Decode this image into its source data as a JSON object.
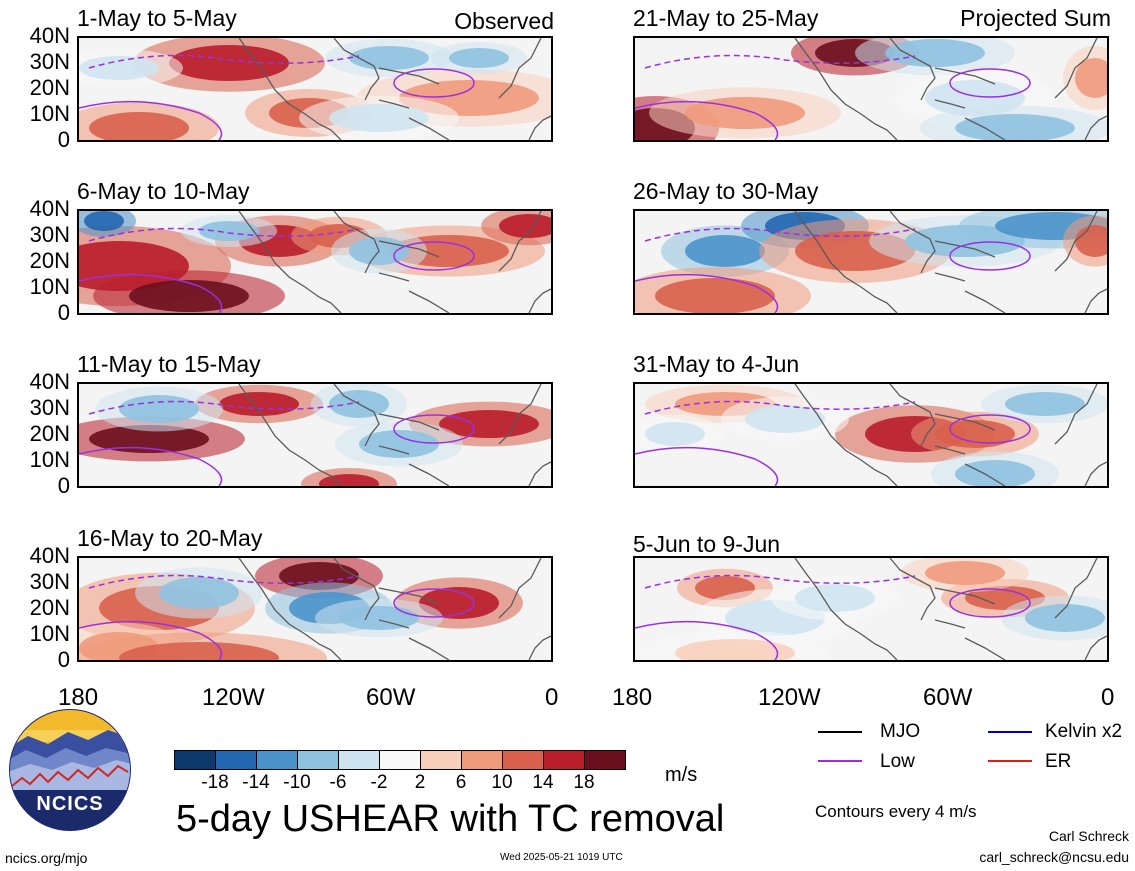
{
  "panels": [
    {
      "id": "p1",
      "title": "1-May to 5-May",
      "tag": "Observed"
    },
    {
      "id": "p2",
      "title": "6-May to 10-May",
      "tag": ""
    },
    {
      "id": "p3",
      "title": "11-May to 15-May",
      "tag": ""
    },
    {
      "id": "p4",
      "title": "16-May to 20-May",
      "tag": ""
    },
    {
      "id": "p5",
      "title": "21-May to 25-May",
      "tag": "Projected Sum"
    },
    {
      "id": "p6",
      "title": "26-May to 30-May",
      "tag": ""
    },
    {
      "id": "p7",
      "title": "31-May to 4-Jun",
      "tag": ""
    },
    {
      "id": "p8",
      "title": "5-Jun to 9-Jun",
      "tag": ""
    }
  ],
  "y_ticks": [
    "40N",
    "30N",
    "20N",
    "10N",
    "0"
  ],
  "x_ticks": [
    "180",
    "120W",
    "60W",
    "0"
  ],
  "colorbar": {
    "labels": [
      "-18",
      "-14",
      "-10",
      "-6",
      "-2",
      "2",
      "6",
      "10",
      "14",
      "18"
    ],
    "colors": [
      "#0d3a6e",
      "#2266b0",
      "#4b93cb",
      "#8fc2e0",
      "#cfe4f1",
      "#f8f8f8",
      "#f9d0bc",
      "#f09a7c",
      "#d8604c",
      "#b81d2a",
      "#6b0f1e"
    ],
    "unit": "m/s"
  },
  "legend": {
    "mjo": {
      "label": "MJO",
      "color": "#000000"
    },
    "kelvin": {
      "label": "Kelvin x2",
      "color": "#0000cc"
    },
    "low": {
      "label": "Low",
      "color": "#9b30e0"
    },
    "er": {
      "label": "ER",
      "color": "#d42020"
    }
  },
  "logo_text": "NCICS",
  "main_title": "5-day USHEAR with TC removal",
  "contours_note": "Contours every 4 m/s",
  "url": "ncics.org/mjo",
  "timestamp": "Wed 2025-05-21 1019 UTC",
  "author": "Carl Schreck",
  "email": "carl_schreck@ncsu.edu"
}
